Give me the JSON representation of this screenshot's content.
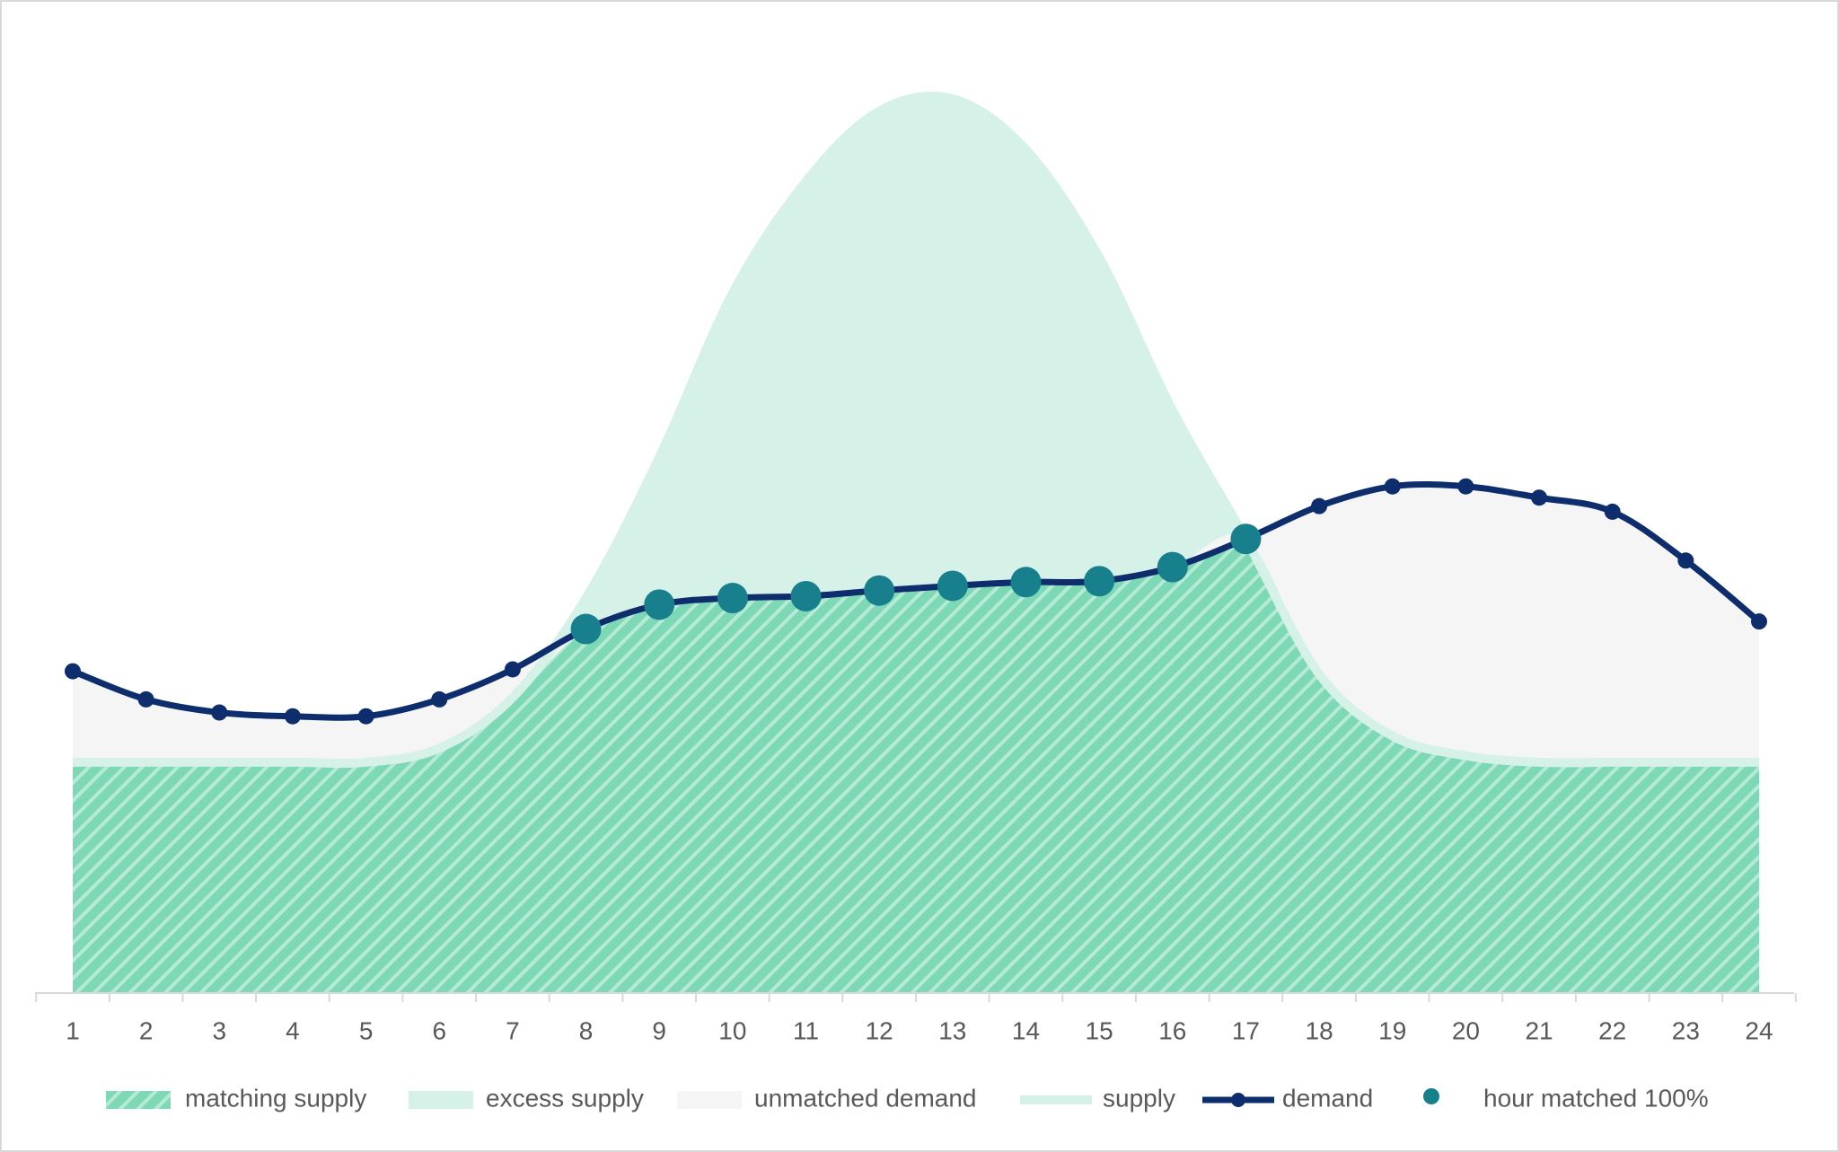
{
  "chart_data": {
    "type": "area",
    "categories": [
      "1",
      "2",
      "3",
      "4",
      "5",
      "6",
      "7",
      "8",
      "9",
      "10",
      "11",
      "12",
      "13",
      "14",
      "15",
      "16",
      "17",
      "18",
      "19",
      "20",
      "21",
      "22",
      "23",
      "24"
    ],
    "ylim": [
      0,
      100
    ],
    "smooth": true,
    "series": [
      {
        "name": "matching supply",
        "kind": "area",
        "pattern": "hatch",
        "color": "#7dd8b5",
        "values": [
          24.6,
          24.6,
          24.6,
          24.6,
          24.6,
          26.1,
          31.5,
          38.8,
          41.4,
          42.1,
          42.3,
          42.9,
          43.4,
          43.8,
          43.9,
          45.4,
          48.4,
          34,
          27.4,
          25.3,
          24.6,
          24.6,
          24.6,
          24.6
        ]
      },
      {
        "name": "excess supply",
        "kind": "area",
        "stacked": true,
        "color": "#d6f1e7",
        "values": [
          0,
          0,
          0,
          0,
          0,
          0,
          0,
          3.3,
          15.7,
          32.5,
          44.2,
          51.1,
          51.9,
          46.1,
          34.5,
          16.7,
          0,
          0,
          0,
          0,
          0,
          0,
          0,
          0
        ]
      },
      {
        "name": "unmatched demand",
        "kind": "area",
        "stacked": true,
        "color": "#f5f5f5",
        "values": [
          9.7,
          6.7,
          5.3,
          4.9,
          4.9,
          5.2,
          3,
          0,
          0,
          0,
          0,
          0,
          0,
          0,
          0,
          0,
          0,
          17.9,
          26.6,
          28.7,
          28.2,
          26.7,
          21.5,
          15
        ]
      },
      {
        "name": "supply",
        "kind": "line",
        "color": "#d6f1e7",
        "values": [
          24.6,
          24.6,
          24.6,
          24.6,
          24.6,
          26.1,
          31.5,
          42.1,
          57.1,
          74.6,
          86.5,
          94,
          95.3,
          89.9,
          78.4,
          62.1,
          48.4,
          34,
          27.4,
          25.3,
          24.6,
          24.6,
          24.6,
          24.6
        ]
      },
      {
        "name": "demand",
        "kind": "line",
        "markers": true,
        "color": "#0d2d6c",
        "values": [
          34.3,
          31.3,
          29.9,
          29.5,
          29.5,
          31.3,
          34.5,
          38.8,
          41.4,
          42.1,
          42.3,
          42.9,
          43.4,
          43.8,
          43.9,
          45.4,
          48.4,
          51.9,
          54,
          54,
          52.8,
          51.3,
          46.1,
          39.6
        ]
      },
      {
        "name": "hour matched 100%",
        "kind": "marker",
        "color": "#17808c",
        "values": [
          null,
          null,
          null,
          null,
          null,
          null,
          null,
          38.8,
          41.4,
          42.1,
          42.3,
          42.9,
          43.4,
          43.8,
          43.9,
          45.4,
          48.4,
          null,
          null,
          null,
          null,
          null,
          null,
          null
        ]
      }
    ]
  }
}
